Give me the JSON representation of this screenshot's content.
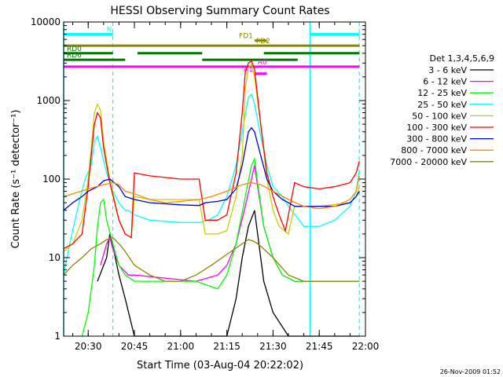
{
  "chart_data": {
    "type": "line",
    "title": "HESSI Observing Summary Count Rates",
    "xlabel": "Start Time (03-Aug-04 20:22:02)",
    "ylabel": "Count Rate (s⁻¹ detector⁻¹)",
    "ylog": true,
    "ylim": [
      1,
      10000
    ],
    "xlim": [
      "20:22:02",
      "22:00:00"
    ],
    "x_ticks": [
      "20:30",
      "20:45",
      "21:00",
      "21:15",
      "21:30",
      "21:45",
      "22:00"
    ],
    "y_ticks": [
      "1",
      "10",
      "100",
      "1000",
      "10000"
    ],
    "legend_title": "Det 1,3,4,5,6,9",
    "legend_position": "right",
    "timestamp": "26-Nov-2009 01:52",
    "series": [
      {
        "name": "3 - 6 keV",
        "color": "#000000",
        "points": [
          [
            "20:33",
            5
          ],
          [
            "20:36",
            10
          ],
          [
            "20:37",
            20
          ],
          [
            "20:38",
            14
          ],
          [
            "20:40",
            6
          ],
          [
            "20:42",
            3
          ],
          [
            "20:45",
            1
          ],
          [
            "20:50",
            1
          ],
          [
            "21:05",
            1
          ],
          [
            "21:15",
            1
          ],
          [
            "21:18",
            3
          ],
          [
            "21:20",
            10
          ],
          [
            "21:22",
            25
          ],
          [
            "21:24",
            40
          ],
          [
            "21:25",
            20
          ],
          [
            "21:27",
            5
          ],
          [
            "21:30",
            2
          ],
          [
            "21:35",
            1
          ],
          [
            "21:45",
            1
          ],
          [
            "21:55",
            1
          ],
          [
            "21:58",
            1
          ]
        ]
      },
      {
        "name": "6 - 12 keV",
        "color": "#ff00ff",
        "points": [
          [
            "20:34",
            8
          ],
          [
            "20:36",
            15
          ],
          [
            "20:37",
            18
          ],
          [
            "20:38",
            13
          ],
          [
            "20:40",
            8
          ],
          [
            "20:43",
            6
          ],
          [
            "20:45",
            6
          ],
          [
            "21:05",
            5
          ],
          [
            "21:12",
            6
          ],
          [
            "21:15",
            8
          ],
          [
            "21:18",
            15
          ],
          [
            "21:21",
            45
          ],
          [
            "21:23",
            100
          ],
          [
            "21:24",
            150
          ],
          [
            "21:25",
            80
          ],
          [
            "21:27",
            25
          ],
          [
            "21:30",
            10
          ],
          [
            "21:33",
            6
          ],
          [
            "21:37",
            5
          ],
          [
            "21:45",
            5
          ],
          [
            "21:55",
            5
          ],
          [
            "21:58",
            5
          ]
        ]
      },
      {
        "name": "12 - 25 keV",
        "color": "#00ff00",
        "points": [
          [
            "20:28",
            1
          ],
          [
            "20:30",
            2
          ],
          [
            "20:32",
            8
          ],
          [
            "20:33",
            25
          ],
          [
            "20:34",
            50
          ],
          [
            "20:35",
            55
          ],
          [
            "20:36",
            30
          ],
          [
            "20:38",
            15
          ],
          [
            "20:40",
            8
          ],
          [
            "20:42",
            6
          ],
          [
            "20:45",
            5
          ],
          [
            "21:05",
            5
          ],
          [
            "21:12",
            4
          ],
          [
            "21:15",
            6
          ],
          [
            "21:18",
            15
          ],
          [
            "21:21",
            60
          ],
          [
            "21:23",
            150
          ],
          [
            "21:24",
            180
          ],
          [
            "21:25",
            90
          ],
          [
            "21:27",
            25
          ],
          [
            "21:30",
            10
          ],
          [
            "21:33",
            6
          ],
          [
            "21:37",
            5
          ],
          [
            "21:45",
            5
          ],
          [
            "21:55",
            5
          ],
          [
            "21:58",
            5
          ]
        ]
      },
      {
        "name": "25 - 50 keV",
        "color": "#00ffff",
        "points": [
          [
            "20:22",
            6
          ],
          [
            "20:24",
            15
          ],
          [
            "20:27",
            50
          ],
          [
            "20:29",
            100
          ],
          [
            "20:31",
            150
          ],
          [
            "20:32",
            300
          ],
          [
            "20:33",
            350
          ],
          [
            "20:34",
            250
          ],
          [
            "20:36",
            120
          ],
          [
            "20:38",
            70
          ],
          [
            "20:40",
            50
          ],
          [
            "20:42",
            40
          ],
          [
            "20:43",
            40
          ],
          [
            "20:45",
            35
          ],
          [
            "20:50",
            30
          ],
          [
            "21:00",
            28
          ],
          [
            "21:06",
            28
          ],
          [
            "21:09",
            30
          ],
          [
            "21:12",
            35
          ],
          [
            "21:15",
            60
          ],
          [
            "21:18",
            150
          ],
          [
            "21:21",
            650
          ],
          [
            "21:22",
            1100
          ],
          [
            "21:23",
            1200
          ],
          [
            "21:24",
            900
          ],
          [
            "21:26",
            350
          ],
          [
            "21:28",
            150
          ],
          [
            "21:30",
            80
          ],
          [
            "21:33",
            60
          ],
          [
            "21:35",
            45
          ],
          [
            "21:40",
            25
          ],
          [
            "21:45",
            25
          ],
          [
            "21:50",
            30
          ],
          [
            "21:55",
            45
          ],
          [
            "21:57",
            70
          ],
          [
            "21:58",
            130
          ]
        ]
      },
      {
        "name": "50 - 100 keV",
        "color": "#cccc00",
        "points": [
          [
            "20:22",
            12
          ],
          [
            "20:25",
            15
          ],
          [
            "20:28",
            30
          ],
          [
            "20:30",
            100
          ],
          [
            "20:31",
            250
          ],
          [
            "20:32",
            700
          ],
          [
            "20:33",
            900
          ],
          [
            "20:34",
            750
          ],
          [
            "20:35",
            300
          ],
          [
            "20:37",
            100
          ],
          [
            "20:40",
            30
          ],
          [
            "20:42",
            20
          ],
          [
            "20:44",
            18
          ],
          [
            "20:45",
            60
          ],
          [
            "20:50",
            55
          ],
          [
            "21:00",
            55
          ],
          [
            "21:06",
            55
          ],
          [
            "21:08",
            20
          ],
          [
            "21:12",
            20
          ],
          [
            "21:15",
            22
          ],
          [
            "21:18",
            60
          ],
          [
            "21:20",
            200
          ],
          [
            "21:21",
            1400
          ],
          [
            "21:22",
            2600
          ],
          [
            "21:23",
            2900
          ],
          [
            "21:24",
            2000
          ],
          [
            "21:26",
            500
          ],
          [
            "21:28",
            100
          ],
          [
            "21:30",
            40
          ],
          [
            "21:32",
            25
          ],
          [
            "21:35",
            20
          ],
          [
            "21:37",
            45
          ],
          [
            "21:45",
            45
          ],
          [
            "21:55",
            50
          ],
          [
            "21:57",
            60
          ],
          [
            "21:58",
            80
          ]
        ]
      },
      {
        "name": "100 - 300 keV",
        "color": "#ff0000",
        "points": [
          [
            "20:22",
            13
          ],
          [
            "20:25",
            15
          ],
          [
            "20:28",
            20
          ],
          [
            "20:30",
            80
          ],
          [
            "20:31",
            200
          ],
          [
            "20:32",
            500
          ],
          [
            "20:33",
            700
          ],
          [
            "20:34",
            600
          ],
          [
            "20:35",
            250
          ],
          [
            "20:37",
            90
          ],
          [
            "20:40",
            30
          ],
          [
            "20:42",
            20
          ],
          [
            "20:44",
            18
          ],
          [
            "20:45",
            120
          ],
          [
            "20:50",
            110
          ],
          [
            "21:00",
            100
          ],
          [
            "21:06",
            100
          ],
          [
            "21:08",
            30
          ],
          [
            "21:12",
            30
          ],
          [
            "21:15",
            35
          ],
          [
            "21:18",
            120
          ],
          [
            "21:20",
            700
          ],
          [
            "21:21",
            2300
          ],
          [
            "21:22",
            3000
          ],
          [
            "21:23",
            3200
          ],
          [
            "21:24",
            2500
          ],
          [
            "21:26",
            500
          ],
          [
            "21:28",
            120
          ],
          [
            "21:30",
            60
          ],
          [
            "21:32",
            35
          ],
          [
            "21:34",
            22
          ],
          [
            "21:37",
            90
          ],
          [
            "21:40",
            80
          ],
          [
            "21:45",
            75
          ],
          [
            "21:50",
            80
          ],
          [
            "21:55",
            90
          ],
          [
            "21:57",
            120
          ],
          [
            "21:58",
            170
          ]
        ]
      },
      {
        "name": "300 - 800 keV",
        "color": "#0000cc",
        "points": [
          [
            "20:22",
            40
          ],
          [
            "20:25",
            50
          ],
          [
            "20:28",
            60
          ],
          [
            "20:30",
            70
          ],
          [
            "20:33",
            80
          ],
          [
            "20:35",
            95
          ],
          [
            "20:37",
            100
          ],
          [
            "20:40",
            80
          ],
          [
            "20:42",
            60
          ],
          [
            "20:45",
            55
          ],
          [
            "20:50",
            50
          ],
          [
            "21:00",
            47
          ],
          [
            "21:06",
            46
          ],
          [
            "21:08",
            50
          ],
          [
            "21:12",
            52
          ],
          [
            "21:15",
            55
          ],
          [
            "21:18",
            75
          ],
          [
            "21:20",
            150
          ],
          [
            "21:22",
            400
          ],
          [
            "21:23",
            450
          ],
          [
            "21:24",
            400
          ],
          [
            "21:26",
            200
          ],
          [
            "21:28",
            100
          ],
          [
            "21:30",
            70
          ],
          [
            "21:33",
            55
          ],
          [
            "21:35",
            50
          ],
          [
            "21:37",
            45
          ],
          [
            "21:45",
            45
          ],
          [
            "21:50",
            45
          ],
          [
            "21:55",
            50
          ],
          [
            "21:57",
            60
          ],
          [
            "21:58",
            70
          ]
        ]
      },
      {
        "name": "800 - 7000 keV",
        "color": "#ff8800",
        "points": [
          [
            "20:22",
            60
          ],
          [
            "20:25",
            65
          ],
          [
            "20:30",
            75
          ],
          [
            "20:35",
            85
          ],
          [
            "20:38",
            90
          ],
          [
            "20:40",
            85
          ],
          [
            "20:42",
            70
          ],
          [
            "20:45",
            65
          ],
          [
            "20:50",
            55
          ],
          [
            "20:55",
            50
          ],
          [
            "21:00",
            52
          ],
          [
            "21:06",
            55
          ],
          [
            "21:10",
            60
          ],
          [
            "21:15",
            70
          ],
          [
            "21:20",
            85
          ],
          [
            "21:23",
            90
          ],
          [
            "21:26",
            85
          ],
          [
            "21:30",
            70
          ],
          [
            "21:35",
            55
          ],
          [
            "21:40",
            45
          ],
          [
            "21:45",
            42
          ],
          [
            "21:50",
            45
          ],
          [
            "21:55",
            55
          ],
          [
            "21:57",
            70
          ],
          [
            "21:58",
            110
          ]
        ]
      },
      {
        "name": "7000 - 20000 keV",
        "color": "#888800",
        "points": [
          [
            "20:22",
            6
          ],
          [
            "20:25",
            8
          ],
          [
            "20:28",
            10
          ],
          [
            "20:31",
            13
          ],
          [
            "20:34",
            15
          ],
          [
            "20:36",
            17
          ],
          [
            "20:38",
            18
          ],
          [
            "20:40",
            15
          ],
          [
            "20:42",
            12
          ],
          [
            "20:45",
            8
          ],
          [
            "20:50",
            6
          ],
          [
            "20:55",
            5
          ],
          [
            "21:00",
            5
          ],
          [
            "21:05",
            6
          ],
          [
            "21:10",
            8
          ],
          [
            "21:15",
            11
          ],
          [
            "21:20",
            15
          ],
          [
            "21:22",
            17
          ],
          [
            "21:24",
            16
          ],
          [
            "21:26",
            14
          ],
          [
            "21:30",
            10
          ],
          [
            "21:35",
            6
          ],
          [
            "21:40",
            5
          ],
          [
            "21:45",
            5
          ],
          [
            "21:50",
            5
          ],
          [
            "21:55",
            5
          ],
          [
            "21:58",
            5
          ]
        ]
      }
    ],
    "state_bars": [
      {
        "label": "N",
        "color": "#00ffff",
        "level": 7000,
        "segments": [
          [
            "20:22:02",
            "20:38"
          ],
          [
            "21:42",
            "21:58"
          ]
        ]
      },
      {
        "label": "FD1",
        "color": "#888800",
        "level": 5800,
        "segments": [
          [
            "21:24",
            "21:28"
          ]
        ]
      },
      {
        "label": "FD2",
        "color": "#888800",
        "level": 5000,
        "segments": [
          [
            "20:22:02",
            "21:58"
          ]
        ]
      },
      {
        "label": "RD0",
        "color": "#007700",
        "level": 4000,
        "segments": [
          [
            "20:22:02",
            "20:38"
          ],
          [
            "20:46",
            "21:07"
          ],
          [
            "21:27",
            "21:58"
          ]
        ]
      },
      {
        "label": "RD6",
        "color": "#007700",
        "level": 3300,
        "segments": [
          [
            "20:22:02",
            "20:42"
          ],
          [
            "21:07",
            "21:38"
          ]
        ]
      },
      {
        "label": "A0",
        "color": "#ff00ff",
        "level": 2700,
        "segments": [
          [
            "20:22:02",
            "21:58"
          ]
        ]
      },
      {
        "label": "A1",
        "color": "#ff00ff",
        "level": 2200,
        "segments": [
          [
            "21:24",
            "21:28"
          ]
        ]
      }
    ],
    "attenuator_markers": {
      "color": "#00ffff",
      "solid": [
        "20:22:02",
        "21:42"
      ],
      "dashed": [
        "20:38",
        "21:58"
      ]
    }
  }
}
